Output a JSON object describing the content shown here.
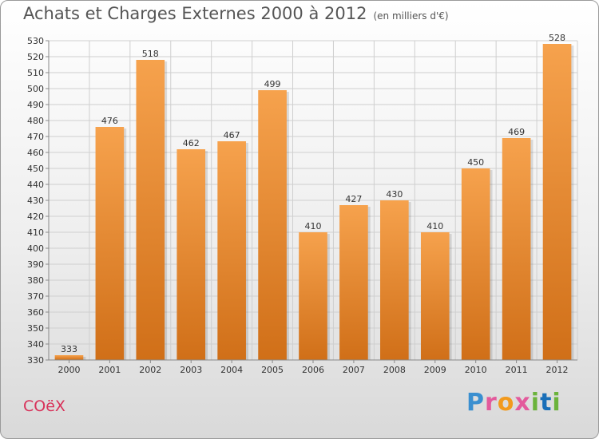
{
  "title": "Achats et Charges Externes 2000 à 2012",
  "subtitle": "(en milliers d'€)",
  "commune": "COëX",
  "logo": {
    "icon": "proxiti-logo",
    "letters": [
      "P",
      "r",
      "o",
      "x",
      "i",
      "t",
      "i"
    ]
  },
  "colors": {
    "bar_light": "#f6a24d",
    "bar_dark": "#d06f18",
    "grid": "#cfcfcf",
    "commune": "#d8325a"
  },
  "chart_data": {
    "type": "bar",
    "title": "Achats et Charges Externes 2000 à 2012",
    "subtitle": "(en milliers d'€)",
    "xlabel": "",
    "ylabel": "",
    "categories": [
      "2000",
      "2001",
      "2002",
      "2003",
      "2004",
      "2005",
      "2006",
      "2007",
      "2008",
      "2009",
      "2010",
      "2011",
      "2012"
    ],
    "values": [
      333,
      476,
      518,
      462,
      467,
      499,
      410,
      427,
      430,
      410,
      450,
      469,
      528
    ],
    "ylim": [
      330,
      530
    ],
    "yticks": [
      330,
      340,
      350,
      360,
      370,
      380,
      390,
      400,
      410,
      420,
      430,
      440,
      450,
      460,
      470,
      480,
      490,
      500,
      510,
      520,
      530
    ],
    "grid": true,
    "data_labels": true,
    "legend": "none"
  }
}
